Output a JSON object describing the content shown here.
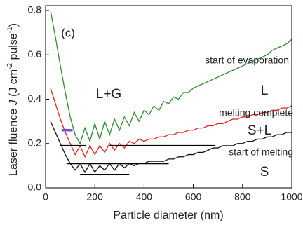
{
  "chart_data": {
    "type": "line",
    "ylabel": [
      "Laser fluence ",
      "J",
      " (J cm",
      "-2",
      " pulse",
      "-1",
      ")"
    ],
    "xlabel": "Particle diameter (nm)",
    "xlim": [
      0,
      1000
    ],
    "xticks": [
      0,
      200,
      400,
      600,
      800,
      1000
    ],
    "ylim": [
      0,
      0.8
    ],
    "yticks": [
      {
        "value": 0,
        "label": "0.0"
      },
      0.2,
      0.4,
      0.6,
      0.8
    ],
    "annotations": [
      "(c)",
      "L+G",
      "L",
      "S+L",
      "S",
      "start of evaporation",
      "melting complete",
      "start of melting"
    ],
    "x": [
      20,
      40,
      60,
      80,
      100,
      120,
      140,
      160,
      180,
      200,
      220,
      240,
      260,
      280,
      300,
      320,
      340,
      360,
      380,
      400,
      420,
      440,
      460,
      480,
      500,
      520,
      540,
      560,
      580,
      600,
      620,
      640,
      660,
      680,
      700,
      720,
      740,
      760,
      780,
      800,
      820,
      840,
      860,
      880,
      900,
      920,
      940,
      960,
      980,
      1000
    ],
    "series": [
      {
        "color": "#2e8b2e",
        "values": [
          0.8,
          0.68,
          0.55,
          0.43,
          0.32,
          0.24,
          0.2,
          0.27,
          0.21,
          0.29,
          0.22,
          0.3,
          0.24,
          0.31,
          0.26,
          0.32,
          0.28,
          0.34,
          0.3,
          0.35,
          0.33,
          0.37,
          0.35,
          0.39,
          0.38,
          0.41,
          0.4,
          0.43,
          0.43,
          0.45,
          0.46,
          0.47,
          0.48,
          0.49,
          0.5,
          0.51,
          0.52,
          0.53,
          0.54,
          0.55,
          0.56,
          0.57,
          0.58,
          0.59,
          0.6,
          0.62,
          0.63,
          0.64,
          0.65,
          0.67
        ]
      },
      {
        "color": "#e8201f",
        "values": [
          0.45,
          0.38,
          0.31,
          0.25,
          0.2,
          0.15,
          0.19,
          0.14,
          0.19,
          0.15,
          0.19,
          0.16,
          0.2,
          0.17,
          0.2,
          0.18,
          0.21,
          0.2,
          0.22,
          0.21,
          0.22,
          0.22,
          0.23,
          0.23,
          0.24,
          0.24,
          0.25,
          0.25,
          0.26,
          0.26,
          0.27,
          0.27,
          0.28,
          0.28,
          0.29,
          0.29,
          0.3,
          0.31,
          0.31,
          0.32,
          0.32,
          0.33,
          0.33,
          0.34,
          0.34,
          0.35,
          0.35,
          0.36,
          0.36,
          0.37
        ]
      },
      {
        "color": "#111111",
        "values": [
          0.3,
          0.25,
          0.2,
          0.15,
          0.11,
          0.08,
          0.11,
          0.07,
          0.11,
          0.07,
          0.1,
          0.08,
          0.11,
          0.08,
          0.11,
          0.09,
          0.11,
          0.1,
          0.11,
          0.11,
          0.12,
          0.12,
          0.12,
          0.12,
          0.13,
          0.13,
          0.14,
          0.14,
          0.15,
          0.15,
          0.16,
          0.16,
          0.17,
          0.18,
          0.18,
          0.19,
          0.19,
          0.19,
          0.2,
          0.2,
          0.21,
          0.21,
          0.22,
          0.22,
          0.23,
          0.23,
          0.24,
          0.24,
          0.25,
          0.25
        ]
      }
    ],
    "segments": [
      {
        "x": [
          65,
          110
        ],
        "y": 0.26,
        "color": "#7b4fc9"
      },
      {
        "x": [
          60,
          165
        ],
        "y": 0.19,
        "color": "#000000"
      },
      {
        "x": [
          260,
          690
        ],
        "y": 0.19,
        "color": "#000000"
      },
      {
        "x": [
          85,
          500
        ],
        "y": 0.11,
        "color": "#000000"
      },
      {
        "x": [
          140,
          340
        ],
        "y": 0.06,
        "color": "#000000"
      }
    ]
  }
}
